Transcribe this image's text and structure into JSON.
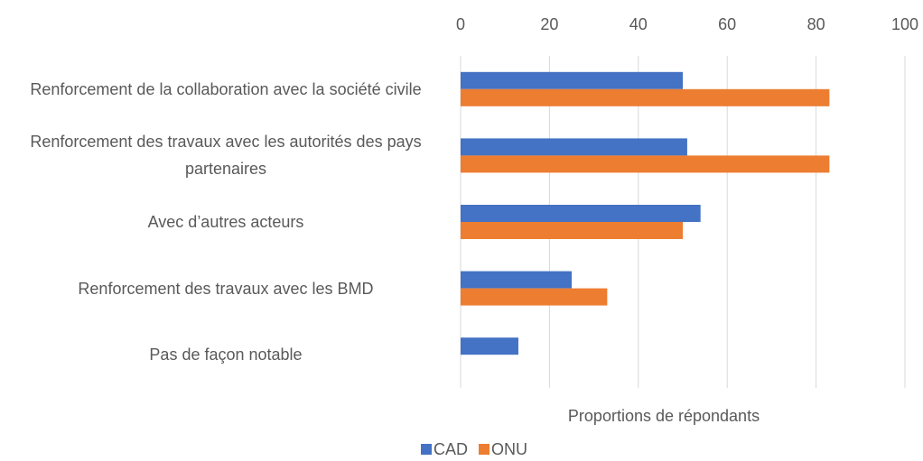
{
  "chart_data": {
    "type": "bar",
    "orientation": "horizontal",
    "categories": [
      "Renforcement de la collaboration avec la société civile",
      "Renforcement des travaux avec les autorités des pays partenaires",
      "Avec d’autres acteurs",
      "Renforcement des travaux avec les BMD",
      "Pas de façon notable"
    ],
    "series": [
      {
        "name": "CAD",
        "color": "#4472c4",
        "values": [
          50,
          51,
          54,
          25,
          13
        ]
      },
      {
        "name": "ONU",
        "color": "#ed7d31",
        "values": [
          83,
          83,
          50,
          33,
          null
        ]
      }
    ],
    "xlabel": "Proportions de répondants",
    "xlim": [
      0,
      100
    ],
    "xticks": [
      0,
      20,
      40,
      60,
      80,
      100
    ],
    "grid": true,
    "legend": "bottom"
  }
}
